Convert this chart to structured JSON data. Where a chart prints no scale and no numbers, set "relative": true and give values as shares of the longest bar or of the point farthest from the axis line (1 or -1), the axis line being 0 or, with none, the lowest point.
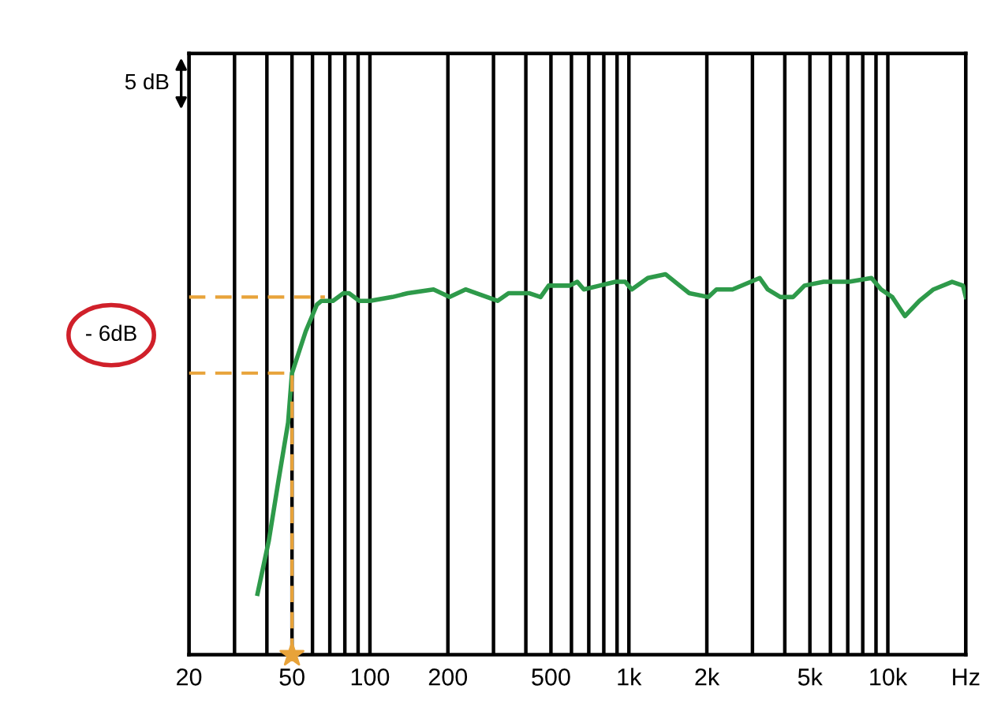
{
  "chart_data": {
    "type": "line",
    "relative": true,
    "xlim": [
      20,
      20000
    ],
    "log": "x",
    "grid": "x",
    "marker": "none",
    "line_style": "solid",
    "xticks": [
      20,
      50,
      100,
      200,
      500,
      {
        "value": 1000,
        "label": "1k"
      },
      {
        "value": 2000,
        "label": "2k"
      },
      {
        "value": 5000,
        "label": "5k"
      },
      {
        "value": 10000,
        "label": "10k"
      },
      {
        "value": 20000,
        "label": "Hz"
      }
    ],
    "annotations": [
      "5 dB",
      "- 6dB"
    ],
    "series": [
      {
        "color": "#2e9a4a",
        "x": [
          36.8,
          40.7,
          44.4,
          48.3,
          50,
          56.5,
          62.4,
          65,
          72,
          79,
          83,
          91,
          100,
          122,
          140,
          176,
          203,
          234,
          258,
          311,
          343,
          413,
          456,
          490,
          589,
          632,
          670,
          771,
          889,
          968,
          1026,
          1183,
          1384,
          1571,
          1711,
          2028,
          2178,
          2512,
          3199,
          3435,
          3846,
          4307,
          4764,
          5650,
          7080,
          8644,
          9418,
          10400,
          11640,
          13240,
          15000,
          17700,
          19500,
          20000
        ],
        "values": [
          0.16,
          0.3,
          0.46,
          0.61,
          0.74,
          0.85,
          0.92,
          0.93,
          0.93,
          0.95,
          0.95,
          0.93,
          0.93,
          0.94,
          0.95,
          0.96,
          0.94,
          0.96,
          0.95,
          0.93,
          0.95,
          0.95,
          0.94,
          0.97,
          0.97,
          0.98,
          0.96,
          0.97,
          0.98,
          0.98,
          0.96,
          0.99,
          1.0,
          0.97,
          0.95,
          0.94,
          0.96,
          0.96,
          0.99,
          0.96,
          0.94,
          0.94,
          0.97,
          0.98,
          0.98,
          0.99,
          0.96,
          0.94,
          0.89,
          0.93,
          0.96,
          0.98,
          0.97,
          0.94
        ]
      },
      {
        "type": "line",
        "line_style": "dashed",
        "color": "#e8a33a",
        "x": [
          20,
          67
        ],
        "values": [
          0.94,
          0.94
        ]
      },
      {
        "type": "line",
        "line_style": "dashed",
        "color": "#e8a33a",
        "x": [
          20,
          50,
          50
        ],
        "values": [
          0.74,
          0.74,
          0
        ]
      },
      {
        "type": "scatter",
        "marker": "star",
        "color": "#e8a33a",
        "x": [
          50
        ],
        "values": [
          0
        ]
      }
    ]
  }
}
